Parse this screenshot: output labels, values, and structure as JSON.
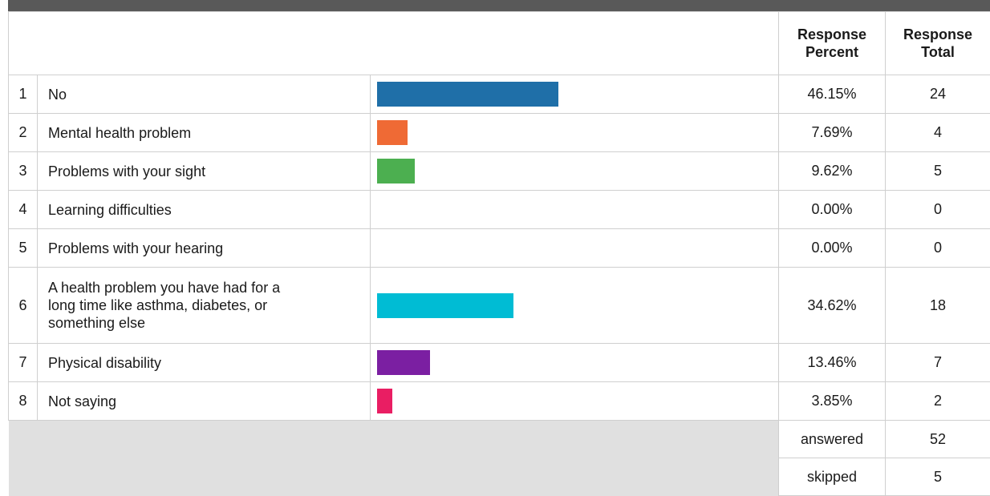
{
  "header": {
    "col_percent": "Response Percent",
    "col_total": "Response Total"
  },
  "chart_data": {
    "type": "bar",
    "categories": [
      "No",
      "Mental health problem",
      "Problems with your sight",
      "Learning difficulties",
      "Problems with your hearing",
      "A health problem you have had for a long time like asthma, diabetes, or something else",
      "Physical disability",
      "Not saying"
    ],
    "values": [
      46.15,
      7.69,
      9.62,
      0.0,
      0.0,
      34.62,
      13.46,
      3.85
    ],
    "totals": [
      24,
      4,
      5,
      0,
      0,
      18,
      7,
      2
    ],
    "colors": [
      "#1f6fa8",
      "#ef6a35",
      "#4caf50",
      "#999999",
      "#999999",
      "#00bcd4",
      "#7b1fa2",
      "#e91e63"
    ]
  },
  "rows": [
    {
      "num": "1",
      "label": "No",
      "percent": "46.15%",
      "total": "24"
    },
    {
      "num": "2",
      "label": "Mental health problem",
      "percent": "7.69%",
      "total": "4"
    },
    {
      "num": "3",
      "label": "Problems with your sight",
      "percent": "9.62%",
      "total": "5"
    },
    {
      "num": "4",
      "label": "Learning difficulties",
      "percent": "0.00%",
      "total": "0"
    },
    {
      "num": "5",
      "label": "Problems with your hearing",
      "percent": "0.00%",
      "total": "0"
    },
    {
      "num": "6",
      "label": "A health problem you have had for a long time like asthma, diabetes, or something else",
      "percent": "34.62%",
      "total": "18"
    },
    {
      "num": "7",
      "label": "Physical disability",
      "percent": "13.46%",
      "total": "7"
    },
    {
      "num": "8",
      "label": "Not saying",
      "percent": "3.85%",
      "total": "2"
    }
  ],
  "footer": {
    "answered_label": "answered",
    "answered_value": "52",
    "skipped_label": "skipped",
    "skipped_value": "5"
  }
}
